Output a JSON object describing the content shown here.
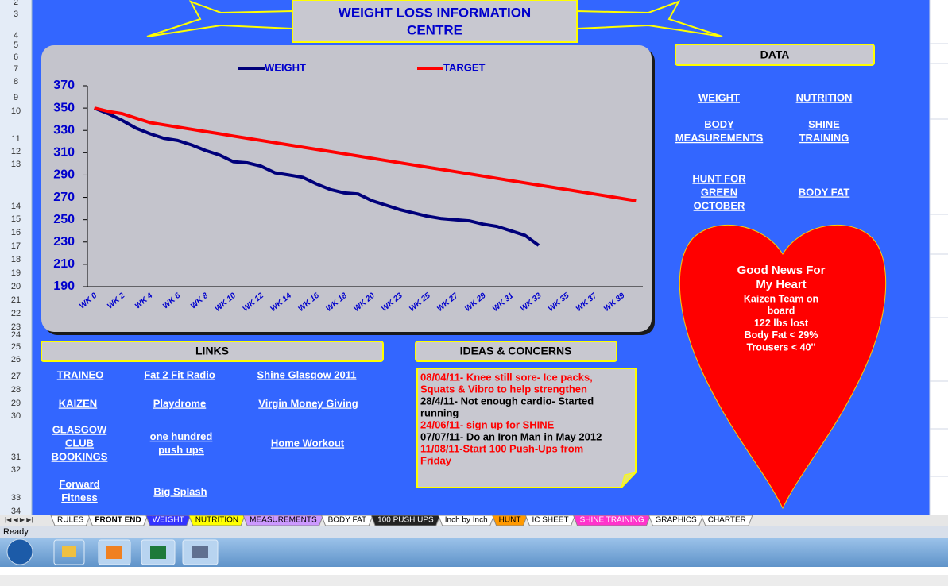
{
  "row_numbers": [
    2,
    3,
    4,
    5,
    6,
    7,
    8,
    9,
    10,
    11,
    12,
    13,
    14,
    15,
    16,
    17,
    18,
    19,
    20,
    21,
    22,
    23,
    24,
    25,
    26,
    27,
    28,
    29,
    30,
    31,
    32,
    33,
    34
  ],
  "title": [
    "WEIGHT LOSS INFORMATION",
    "CENTRE"
  ],
  "chart_data": {
    "type": "line",
    "legend": "top",
    "categories": [
      "WK 0",
      null,
      "WK 2",
      null,
      "WK 4",
      null,
      "WK 6",
      null,
      "WK 8",
      null,
      "WK 10",
      null,
      "WK 12",
      null,
      "WK 14",
      null,
      "WK 16",
      null,
      "WK 18",
      null,
      "WK 20",
      null,
      "WK 23",
      null,
      "WK 25",
      null,
      "WK 27",
      null,
      "WK 29",
      null,
      "WK 31",
      null,
      "WK 33",
      null,
      "WK 35",
      null,
      "WK 37",
      null,
      "WK 39",
      null
    ],
    "series": [
      {
        "name": "WEIGHT",
        "color": "#00007a",
        "values": [
          350,
          345,
          339,
          332,
          327,
          323,
          321,
          317,
          312,
          308,
          302,
          301,
          298,
          292,
          290,
          288,
          282,
          277,
          274,
          273,
          267,
          263,
          259,
          256,
          253,
          251,
          250,
          249,
          246,
          244,
          240,
          236,
          227,
          null,
          null,
          null,
          null,
          null,
          null,
          null
        ]
      },
      {
        "name": "TARGET",
        "color": "#ff0000",
        "values": [
          350,
          347,
          345,
          341,
          337,
          335,
          333,
          331,
          329,
          327,
          325,
          323,
          321,
          319,
          317,
          315,
          313,
          311,
          309,
          307,
          305,
          303,
          301,
          299,
          297,
          295,
          293,
          291,
          289,
          287,
          285,
          283,
          281,
          279,
          277,
          275,
          273,
          271,
          269,
          267
        ]
      }
    ],
    "ylim": [
      190,
      370
    ],
    "yticks": [
      190,
      210,
      230,
      250,
      270,
      290,
      310,
      330,
      350,
      370
    ],
    "grid": false
  },
  "data_panel": {
    "header": "DATA",
    "links": [
      {
        "lines": [
          "WEIGHT"
        ]
      },
      {
        "lines": [
          "NUTRITION"
        ]
      },
      {
        "lines": [
          "BODY",
          "MEASUREMENTS"
        ]
      },
      {
        "lines": [
          "SHINE",
          "TRAINING"
        ]
      },
      {
        "lines": [
          "HUNT FOR",
          "GREEN",
          "OCTOBER"
        ]
      },
      {
        "lines": [
          "BODY FAT"
        ]
      }
    ]
  },
  "heart": {
    "title": [
      "Good News For",
      "My Heart"
    ],
    "lines": [
      "Kaizen Team on",
      "board",
      "122 lbs lost",
      "Body Fat < 29%",
      "Trousers < 40''"
    ]
  },
  "links_panel": {
    "header": "LINKS",
    "links": [
      {
        "lines": [
          "TRAINEO"
        ]
      },
      {
        "lines": [
          "Fat 2 Fit Radio"
        ]
      },
      {
        "lines": [
          "Shine Glasgow 2011"
        ]
      },
      {
        "lines": [
          "KAIZEN"
        ]
      },
      {
        "lines": [
          "Playdrome"
        ]
      },
      {
        "lines": [
          "Virgin Money Giving"
        ]
      },
      {
        "lines": [
          "GLASGOW",
          "CLUB",
          "BOOKINGS"
        ]
      },
      {
        "lines": [
          "one hundred",
          "push ups"
        ]
      },
      {
        "lines": [
          "Home Workout"
        ]
      },
      {
        "lines": [
          "Forward",
          "Fitness"
        ]
      },
      {
        "lines": [
          "Big Splash"
        ]
      }
    ]
  },
  "ideas": {
    "header": "IDEAS & CONCERNS",
    "entries": [
      {
        "color": "#ff0000",
        "lines": [
          "08/04/11- Knee still sore- Ice packs,",
          "Squats & Vibro to help strengthen"
        ]
      },
      {
        "color": "#000000",
        "lines": [
          "28/4/11- Not enough cardio- Started",
          "running"
        ]
      },
      {
        "color": "#ff0000",
        "lines": [
          "24/06/11- sign up for SHINE"
        ]
      },
      {
        "color": "#000000",
        "lines": [
          "07/07/11- Do an Iron Man in May 2012"
        ]
      },
      {
        "color": "#ff0000",
        "lines": [
          "11/08/11-Start 100 Push-Ups from",
          "Friday"
        ]
      }
    ]
  },
  "sheet_tabs": [
    {
      "name": "RULES",
      "color": "#ffffff"
    },
    {
      "name": "FRONT END",
      "color": "#ffffff",
      "active": true
    },
    {
      "name": "WEIGHT",
      "color": "#3333ff"
    },
    {
      "name": "NUTRITION",
      "color": "#ffff00"
    },
    {
      "name": "MEASUREMENTS",
      "color": "#cc99ff"
    },
    {
      "name": "BODY FAT",
      "color": "#ffffff"
    },
    {
      "name": "100 PUSH UPS",
      "color": "#222222"
    },
    {
      "name": "Inch by Inch",
      "color": "#ffffff"
    },
    {
      "name": "HUNT",
      "color": "#ff9900"
    },
    {
      "name": "IC SHEET",
      "color": "#ffffff"
    },
    {
      "name": "SHINE TRAINING",
      "color": "#ff33cc"
    },
    {
      "name": "GRAPHICS",
      "color": "#ffffff"
    },
    {
      "name": "CHARTER",
      "color": "#ffffff"
    }
  ],
  "status": "Ready"
}
